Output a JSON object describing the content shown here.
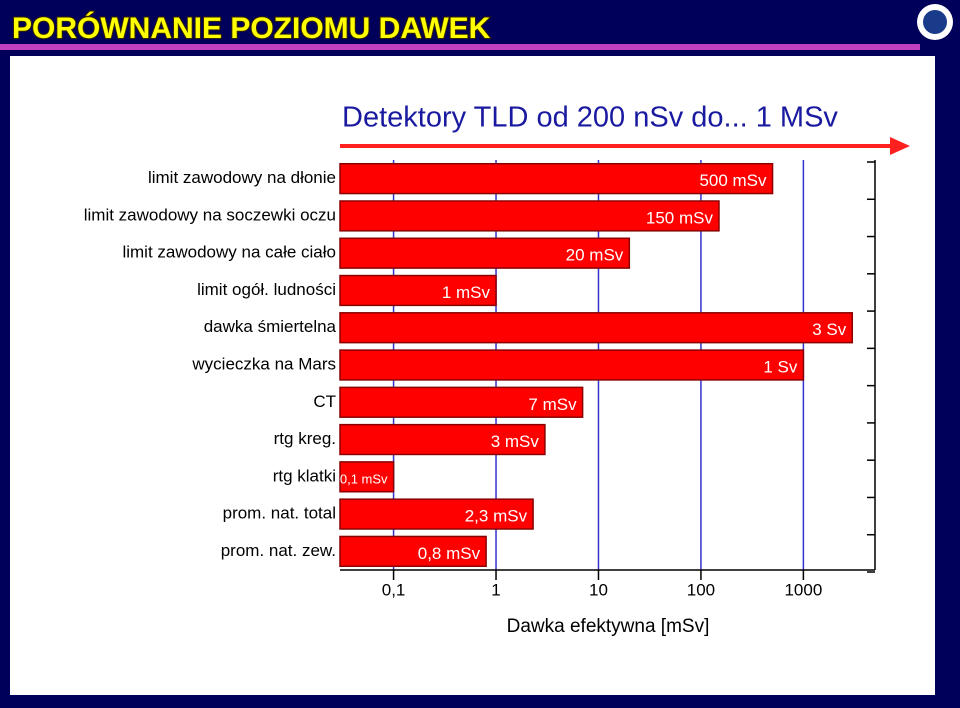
{
  "chart_data": {
    "type": "hbar",
    "title": "PORÓWNANIE POZIOMU DAWEK",
    "subtitle": "Detektory TLD od 200 nSv do... 1 MSv",
    "xlabel": "Dawka efektywna [mSv]",
    "categories": [
      "limit zawodowy na dłonie",
      "limit zawodowy na soczewki oczu",
      "limit zawodowy na całe ciało",
      "limit ogół. ludności",
      "dawka śmiertelna",
      "wycieczka na Mars",
      "CT",
      "rtg kreg.",
      "rtg klatki",
      "prom. nat. total",
      "prom. nat. zew."
    ],
    "values": [
      500,
      150,
      20,
      1,
      3000,
      1000,
      7,
      3,
      0.1,
      2.3,
      0.8
    ],
    "value_labels": [
      "500 mSv",
      "150 mSv",
      "20 mSv",
      "1 mSv",
      "3 Sv",
      "1 Sv",
      "7 mSv",
      "3 mSv",
      "0,1 mSv",
      "2,3 mSv",
      "0,8 mSv"
    ],
    "color": "#ff0000",
    "xscale": "log",
    "xlim": [
      0.03,
      5000
    ],
    "xticks": [
      {
        "value": 0.1,
        "label": "0,1"
      },
      1,
      10,
      100,
      1000
    ],
    "grid": true
  }
}
